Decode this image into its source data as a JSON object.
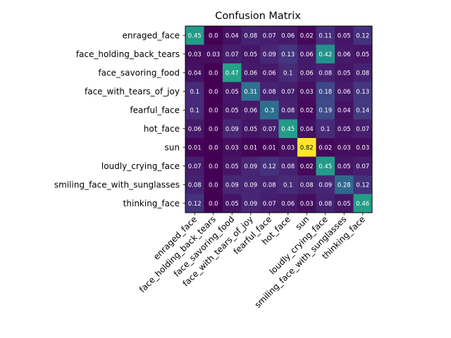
{
  "chart_data": {
    "type": "heatmap",
    "title": "Confusion Matrix",
    "xlabel": "",
    "ylabel": "",
    "colormap": "viridis",
    "value_range": [
      0.0,
      0.82
    ],
    "grid": false,
    "row_labels": [
      "enraged_face",
      "face_holding_back_tears",
      "face_savoring_food",
      "face_with_tears_of_joy",
      "fearful_face",
      "hot_face",
      "sun",
      "loudly_crying_face",
      "smiling_face_with_sunglasses",
      "thinking_face"
    ],
    "col_labels": [
      "enraged_face",
      "face_holding_back_tears",
      "face_savoring_food",
      "face_with_tears_of_joy",
      "fearful_face",
      "hot_face",
      "sun",
      "loudly_crying_face",
      "smiling_face_with_sunglasses",
      "thinking_face"
    ],
    "values": [
      [
        0.45,
        0.0,
        0.04,
        0.08,
        0.07,
        0.06,
        0.02,
        0.11,
        0.05,
        0.12
      ],
      [
        0.03,
        0.03,
        0.07,
        0.05,
        0.09,
        0.13,
        0.06,
        0.42,
        0.06,
        0.05
      ],
      [
        0.04,
        0.0,
        0.47,
        0.06,
        0.06,
        0.1,
        0.06,
        0.08,
        0.05,
        0.08
      ],
      [
        0.1,
        0.0,
        0.05,
        0.31,
        0.08,
        0.07,
        0.03,
        0.18,
        0.06,
        0.13
      ],
      [
        0.1,
        0.0,
        0.05,
        0.06,
        0.3,
        0.08,
        0.02,
        0.19,
        0.04,
        0.14
      ],
      [
        0.06,
        0.0,
        0.09,
        0.05,
        0.07,
        0.45,
        0.04,
        0.1,
        0.05,
        0.07
      ],
      [
        0.01,
        0.0,
        0.03,
        0.01,
        0.01,
        0.03,
        0.82,
        0.02,
        0.03,
        0.03
      ],
      [
        0.07,
        0.0,
        0.05,
        0.09,
        0.12,
        0.08,
        0.02,
        0.45,
        0.05,
        0.07
      ],
      [
        0.08,
        0.0,
        0.09,
        0.09,
        0.08,
        0.1,
        0.08,
        0.09,
        0.28,
        0.12
      ],
      [
        0.12,
        0.0,
        0.05,
        0.09,
        0.07,
        0.06,
        0.03,
        0.08,
        0.05,
        0.46
      ]
    ],
    "cell_labels": [
      [
        "0.45",
        "0.0",
        "0.04",
        "0.08",
        "0.07",
        "0.06",
        "0.02",
        "0.11",
        "0.05",
        "0.12"
      ],
      [
        "0.03",
        "0.03",
        "0.07",
        "0.05",
        "0.09",
        "0.13",
        "0.06",
        "0.42",
        "0.06",
        "0.05"
      ],
      [
        "0.04",
        "0.0",
        "0.47",
        "0.06",
        "0.06",
        "0.1",
        "0.06",
        "0.08",
        "0.05",
        "0.08"
      ],
      [
        "0.1",
        "0.0",
        "0.05",
        "0.31",
        "0.08",
        "0.07",
        "0.03",
        "0.18",
        "0.06",
        "0.13"
      ],
      [
        "0.1",
        "0.0",
        "0.05",
        "0.06",
        "0.3",
        "0.08",
        "0.02",
        "0.19",
        "0.04",
        "0.14"
      ],
      [
        "0.06",
        "0.0",
        "0.09",
        "0.05",
        "0.07",
        "0.45",
        "0.04",
        "0.1",
        "0.05",
        "0.07"
      ],
      [
        "0.01",
        "0.0",
        "0.03",
        "0.01",
        "0.01",
        "0.03",
        "0.82",
        "0.02",
        "0.03",
        "0.03"
      ],
      [
        "0.07",
        "0.0",
        "0.05",
        "0.09",
        "0.12",
        "0.08",
        "0.02",
        "0.45",
        "0.05",
        "0.07"
      ],
      [
        "0.08",
        "0.0",
        "0.09",
        "0.09",
        "0.08",
        "0.1",
        "0.08",
        "0.09",
        "0.28",
        "0.12"
      ],
      [
        "0.12",
        "0.0",
        "0.05",
        "0.09",
        "0.07",
        "0.06",
        "0.03",
        "0.08",
        "0.05",
        "0.46"
      ]
    ]
  }
}
